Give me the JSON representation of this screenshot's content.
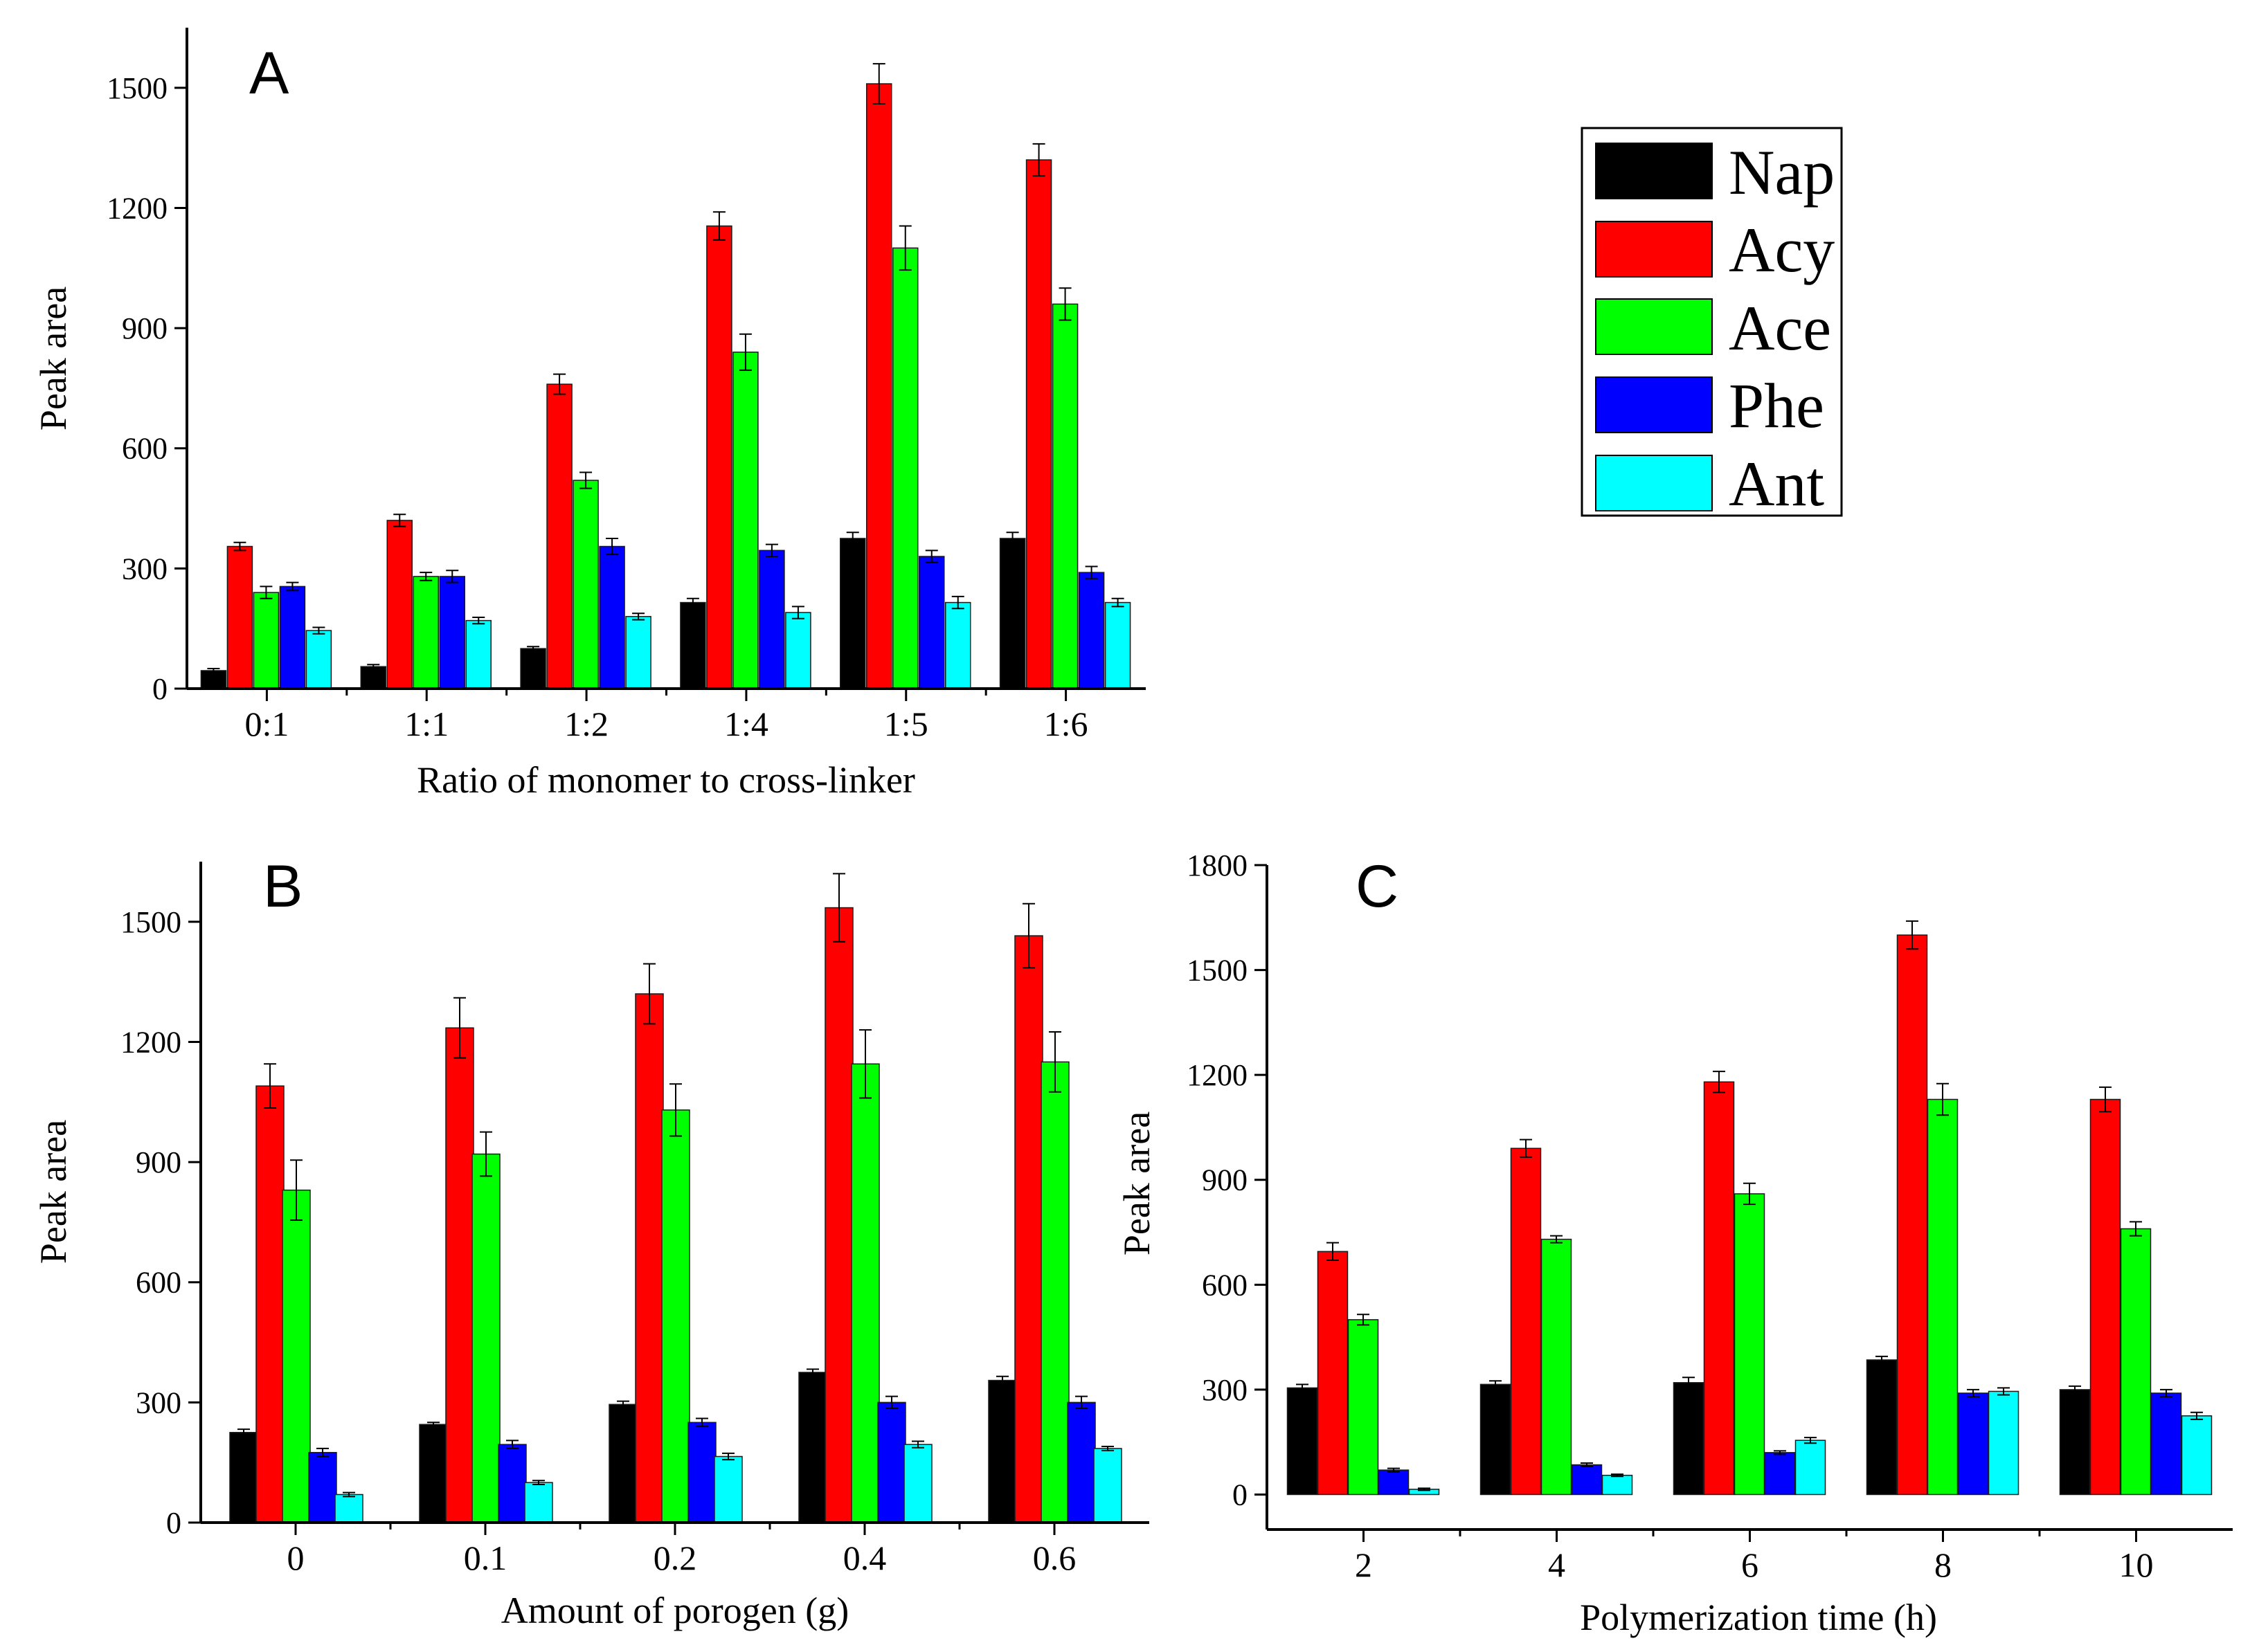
{
  "legend": {
    "entries": [
      {
        "name": "Nap",
        "color": "#000000"
      },
      {
        "name": "Acy",
        "color": "#ff0000"
      },
      {
        "name": "Ace",
        "color": "#00ff00"
      },
      {
        "name": "Phe",
        "color": "#0000ff"
      },
      {
        "name": "Ant",
        "color": "#00ffff"
      }
    ]
  },
  "chart_data": [
    {
      "panel": "A",
      "type": "bar",
      "title": "",
      "xlabel": "Ratio of monomer to cross-linker",
      "ylabel": "Peak area",
      "categories": [
        "0:1",
        "1:1",
        "1:2",
        "1:4",
        "1:5",
        "1:6"
      ],
      "ylim": [
        0,
        1650
      ],
      "yticks": [
        0,
        300,
        600,
        900,
        1200,
        1500
      ],
      "series": [
        {
          "name": "Nap",
          "color": "#000000",
          "values": [
            45,
            55,
            100,
            215,
            375,
            375
          ],
          "errors": [
            5,
            5,
            5,
            10,
            15,
            15
          ]
        },
        {
          "name": "Acy",
          "color": "#ff0000",
          "values": [
            355,
            420,
            760,
            1155,
            1510,
            1320
          ],
          "errors": [
            10,
            15,
            25,
            35,
            50,
            40
          ]
        },
        {
          "name": "Ace",
          "color": "#00ff00",
          "values": [
            240,
            280,
            520,
            840,
            1100,
            960
          ],
          "errors": [
            15,
            10,
            20,
            45,
            55,
            40
          ]
        },
        {
          "name": "Phe",
          "color": "#0000ff",
          "values": [
            255,
            280,
            355,
            345,
            330,
            290
          ],
          "errors": [
            10,
            15,
            20,
            15,
            15,
            15
          ]
        },
        {
          "name": "Ant",
          "color": "#00ffff",
          "values": [
            145,
            170,
            180,
            190,
            215,
            215
          ],
          "errors": [
            8,
            8,
            8,
            15,
            15,
            10
          ]
        }
      ]
    },
    {
      "panel": "B",
      "type": "bar",
      "title": "",
      "xlabel": "Amount of porogen (g)",
      "ylabel": "Peak area",
      "categories": [
        "0",
        "0.1",
        "0.2",
        "0.4",
        "0.6"
      ],
      "ylim": [
        0,
        1650
      ],
      "yticks": [
        0,
        300,
        600,
        900,
        1200,
        1500
      ],
      "series": [
        {
          "name": "Nap",
          "color": "#000000",
          "values": [
            225,
            245,
            295,
            375,
            355
          ],
          "errors": [
            8,
            5,
            8,
            8,
            10
          ]
        },
        {
          "name": "Acy",
          "color": "#ff0000",
          "values": [
            1090,
            1235,
            1320,
            1535,
            1465
          ],
          "errors": [
            55,
            75,
            75,
            85,
            80
          ]
        },
        {
          "name": "Ace",
          "color": "#00ff00",
          "values": [
            830,
            920,
            1030,
            1145,
            1150
          ],
          "errors": [
            75,
            55,
            65,
            85,
            75
          ]
        },
        {
          "name": "Phe",
          "color": "#0000ff",
          "values": [
            175,
            195,
            250,
            300,
            300
          ],
          "errors": [
            10,
            10,
            10,
            15,
            15
          ]
        },
        {
          "name": "Ant",
          "color": "#00ffff",
          "values": [
            70,
            100,
            165,
            195,
            185
          ],
          "errors": [
            5,
            5,
            8,
            8,
            5
          ]
        }
      ]
    },
    {
      "panel": "C",
      "type": "bar",
      "title": "",
      "xlabel": "Polymerization time (h)",
      "ylabel": "Peak area",
      "categories": [
        "2",
        "4",
        "6",
        "8",
        "10"
      ],
      "ylim": [
        -100,
        1800
      ],
      "yticks": [
        0,
        300,
        600,
        900,
        1200,
        1500,
        1800
      ],
      "series": [
        {
          "name": "Nap",
          "color": "#000000",
          "values": [
            305,
            315,
            320,
            385,
            300
          ],
          "errors": [
            10,
            10,
            15,
            10,
            10
          ]
        },
        {
          "name": "Acy",
          "color": "#ff0000",
          "values": [
            695,
            990,
            1180,
            1600,
            1130
          ],
          "errors": [
            25,
            25,
            30,
            40,
            35
          ]
        },
        {
          "name": "Ace",
          "color": "#00ff00",
          "values": [
            500,
            730,
            860,
            1130,
            760
          ],
          "errors": [
            15,
            10,
            30,
            45,
            20
          ]
        },
        {
          "name": "Phe",
          "color": "#0000ff",
          "values": [
            70,
            85,
            120,
            290,
            290
          ],
          "errors": [
            5,
            5,
            5,
            10,
            10
          ]
        },
        {
          "name": "Ant",
          "color": "#00ffff",
          "values": [
            15,
            55,
            155,
            295,
            225
          ],
          "errors": [
            3,
            3,
            8,
            10,
            10
          ]
        }
      ]
    }
  ]
}
